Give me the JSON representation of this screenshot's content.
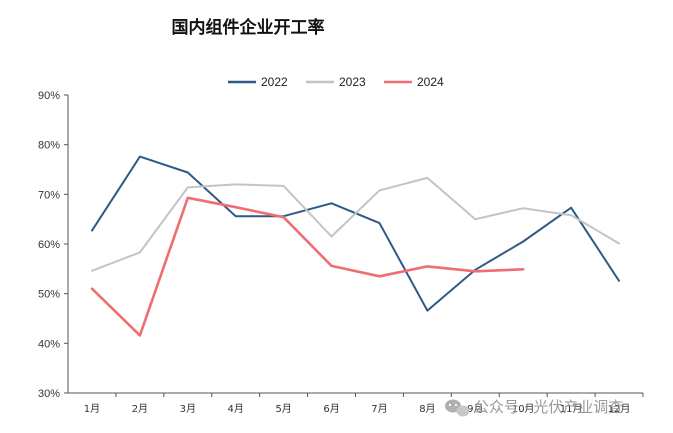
{
  "chart_data": {
    "type": "line",
    "title": "国内组件企业开工率",
    "xlabel": "",
    "ylabel": "",
    "categories": [
      "1月",
      "2月",
      "3月",
      "4月",
      "5月",
      "6月",
      "7月",
      "8月",
      "9月",
      "10月",
      "11月",
      "12月"
    ],
    "y_tick_labels": [
      "30%",
      "40%",
      "50%",
      "60%",
      "70%",
      "80%",
      "90%"
    ],
    "ylim": [
      30,
      90
    ],
    "y_unit": "%",
    "grid": false,
    "legend_position": "top",
    "series": [
      {
        "name": "2022",
        "color": "#2f5a86",
        "values": [
          62.7,
          77.6,
          74.4,
          65.6,
          65.6,
          68.2,
          64.2,
          46.6,
          54.8,
          60.5,
          67.3,
          52.6
        ]
      },
      {
        "name": "2023",
        "color": "#c4c4c4",
        "values": [
          54.6,
          58.3,
          71.4,
          72.0,
          71.7,
          61.5,
          70.8,
          73.3,
          65.0,
          67.2,
          65.8,
          60.1
        ]
      },
      {
        "name": "2024",
        "color": "#ef6e73",
        "values": [
          51.0,
          41.6,
          69.3,
          67.4,
          65.4,
          55.6,
          53.5,
          55.5,
          54.5,
          54.9,
          null,
          null
        ]
      }
    ]
  },
  "watermark": {
    "icon": "wechat-icon",
    "text": "公众号 · 光伏产业调查"
  }
}
